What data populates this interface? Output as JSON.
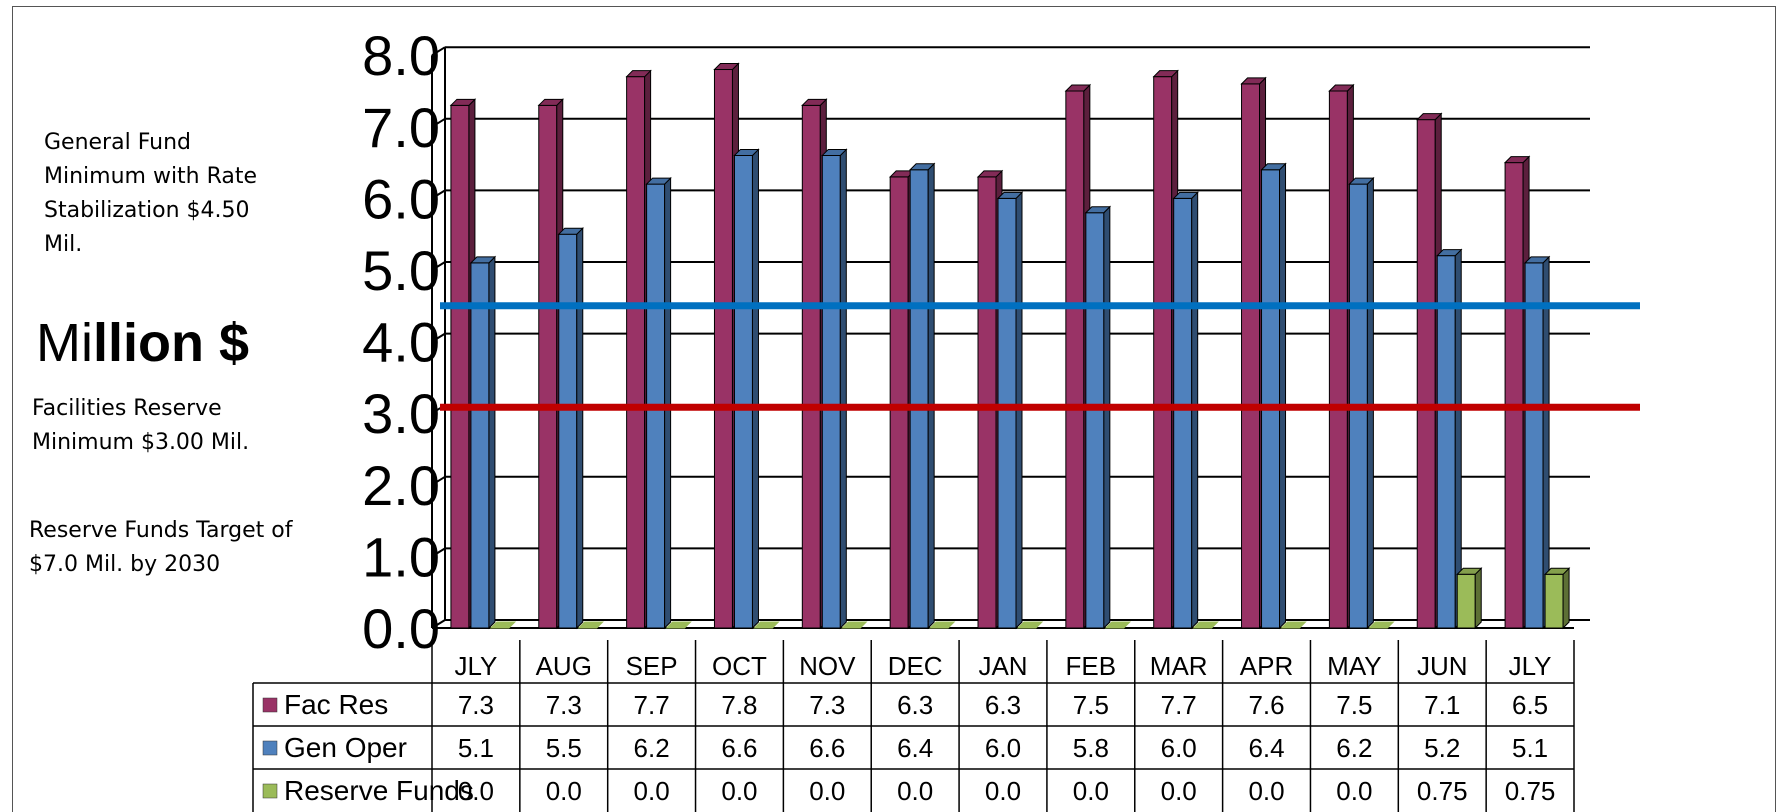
{
  "notes": {
    "general_fund": "General Fund Minimum with Rate Stabilization $4.50 Mil.",
    "facilities_reserve": "Facilities Reserve Minimum $3.00 Mil.",
    "reserve_target": "Reserve Funds Target of $7.0 Mil. by 2030"
  },
  "colors": {
    "fac_res": "#993366",
    "gen_oper": "#4f81bd",
    "reserve_funds": "#9bbb59",
    "general_fund_line": "#0070c0",
    "facilities_line": "#c00000"
  },
  "chart_data": {
    "type": "bar",
    "ylabel": "Million $",
    "ylabel_parts": [
      "Mi",
      "llion $"
    ],
    "ylim": [
      0,
      8
    ],
    "yticks": [
      "0.0",
      "1.0",
      "2.0",
      "3.0",
      "4.0",
      "5.0",
      "6.0",
      "7.0",
      "8.0"
    ],
    "grid": true,
    "categories": [
      "JLY",
      "AUG",
      "SEP",
      "OCT",
      "NOV",
      "DEC",
      "JAN",
      "FEB",
      "MAR",
      "APR",
      "MAY",
      "JUN",
      "JLY"
    ],
    "series": [
      {
        "name": "Fac Res",
        "values": [
          7.3,
          7.3,
          7.7,
          7.8,
          7.3,
          6.3,
          6.3,
          7.5,
          7.7,
          7.6,
          7.5,
          7.1,
          6.5
        ],
        "labels": [
          "7.3",
          "7.3",
          "7.7",
          "7.8",
          "7.3",
          "6.3",
          "6.3",
          "7.5",
          "7.7",
          "7.6",
          "7.5",
          "7.1",
          "6.5"
        ]
      },
      {
        "name": "Gen Oper",
        "values": [
          5.1,
          5.5,
          6.2,
          6.6,
          6.6,
          6.4,
          6.0,
          5.8,
          6.0,
          6.4,
          6.2,
          5.2,
          5.1
        ],
        "labels": [
          "5.1",
          "5.5",
          "6.2",
          "6.6",
          "6.6",
          "6.4",
          "6.0",
          "5.8",
          "6.0",
          "6.4",
          "6.2",
          "5.2",
          "5.1"
        ]
      },
      {
        "name": "Reserve Funds",
        "values": [
          0.0,
          0.0,
          0.0,
          0.0,
          0.0,
          0.0,
          0.0,
          0.0,
          0.0,
          0.0,
          0.0,
          0.75,
          0.75
        ],
        "labels": [
          "0.0",
          "0.0",
          "0.0",
          "0.0",
          "0.0",
          "0.0",
          "0.0",
          "0.0",
          "0.0",
          "0.0",
          "0.0",
          "0.75",
          "0.75"
        ]
      }
    ],
    "reference_lines": [
      {
        "value": 4.5,
        "color": "#0070c0"
      },
      {
        "value": 3.0,
        "color": "#c00000"
      }
    ],
    "data_table": true
  }
}
